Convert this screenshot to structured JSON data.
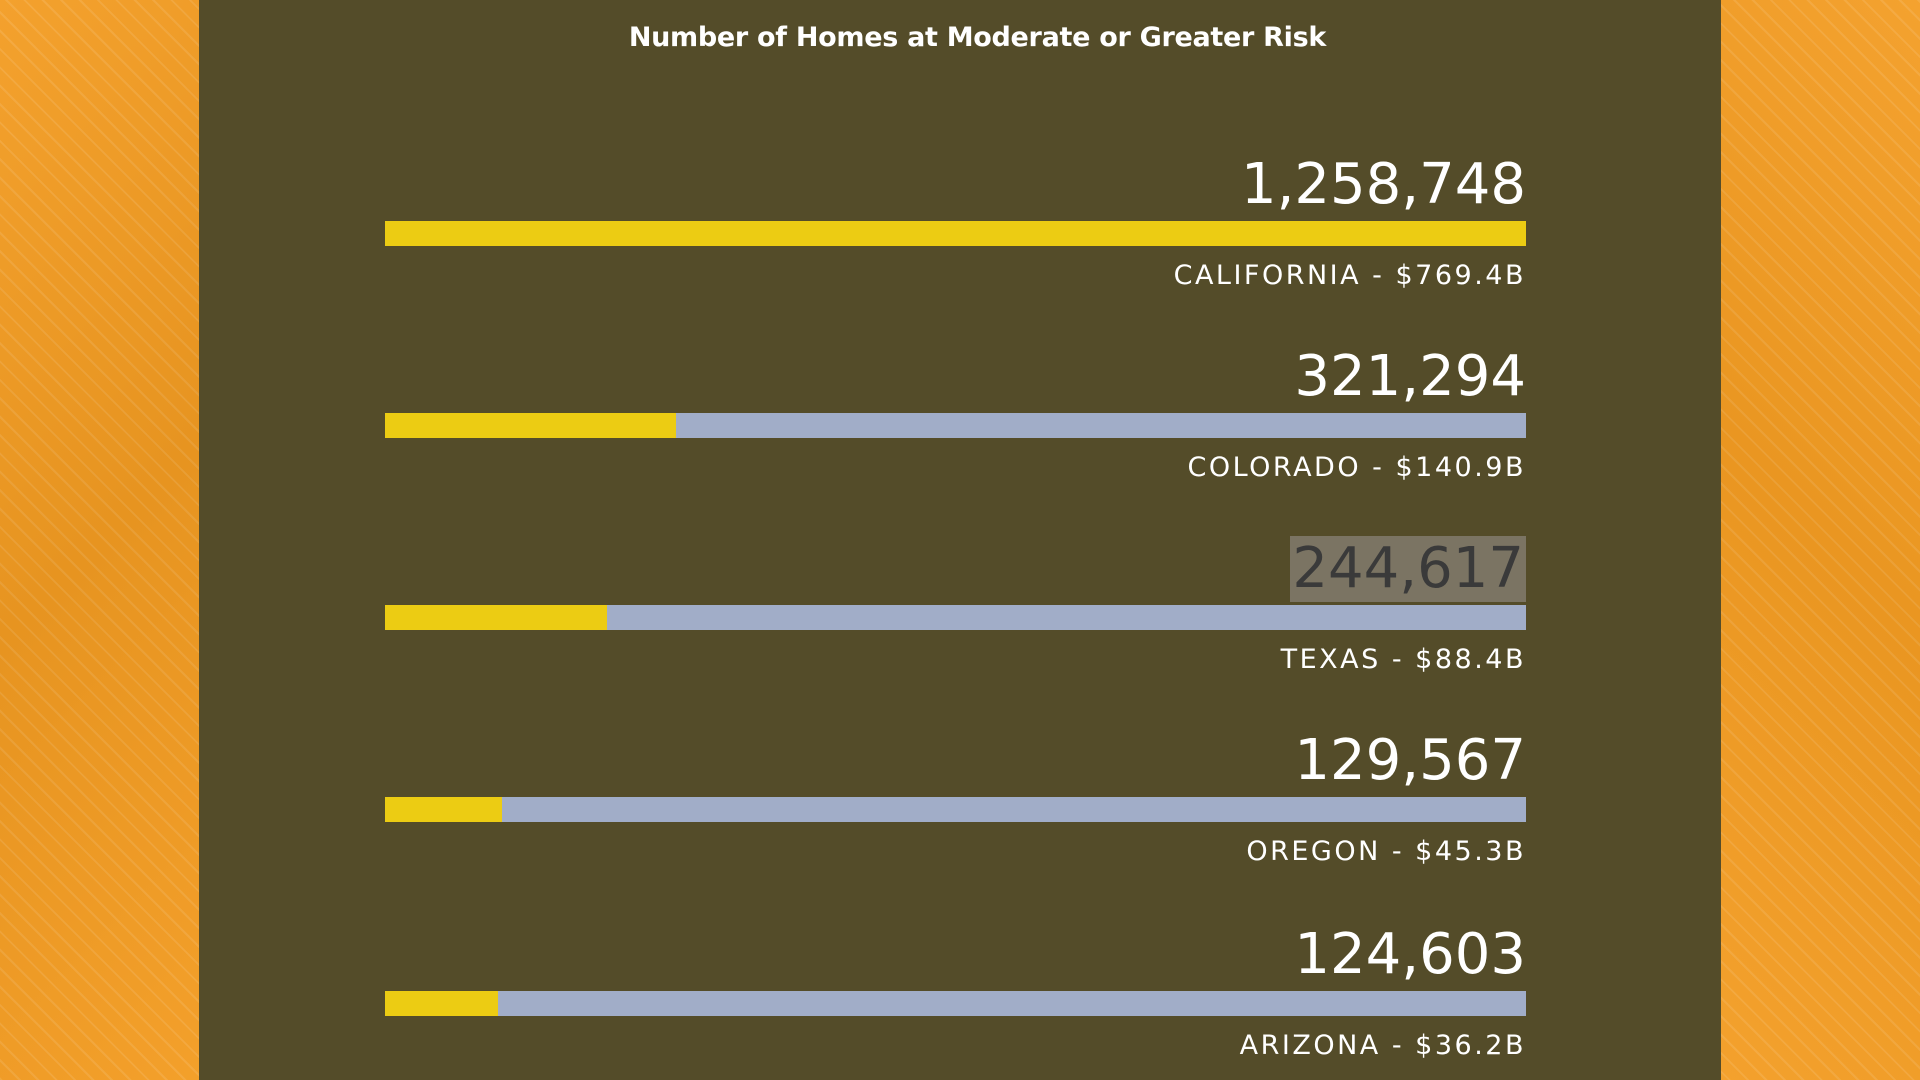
{
  "chart_data": {
    "type": "bar",
    "title": "Number of Homes at Moderate or Greater Risk",
    "categories": [
      "CALIFORNIA",
      "COLORADO",
      "TEXAS",
      "OREGON",
      "ARIZONA"
    ],
    "values": [
      1258748,
      321294,
      244617,
      129567,
      124603
    ],
    "xlim": [
      0,
      1258748
    ],
    "rows": [
      {
        "value_text": "1,258,748",
        "label": "CALIFORNIA - $769.4B",
        "value": 1258748,
        "highlighted": false
      },
      {
        "value_text": "321,294",
        "label": "COLORADO - $140.9B",
        "value": 321294,
        "highlighted": false
      },
      {
        "value_text": "244,617",
        "label": "TEXAS - $88.4B",
        "value": 244617,
        "highlighted": true
      },
      {
        "value_text": "129,567",
        "label": "OREGON - $45.3B",
        "value": 129567,
        "highlighted": false
      },
      {
        "value_text": "124,603",
        "label": "ARIZONA - $36.2B",
        "value": 124603,
        "highlighted": false
      }
    ]
  },
  "colors": {
    "background_orange": "#f39c22",
    "panel": "#544c29",
    "bar_fill": "#eccc13",
    "bar_track": "#a1adc8",
    "text": "#ffffff",
    "highlight_bg": "#7b7463"
  }
}
